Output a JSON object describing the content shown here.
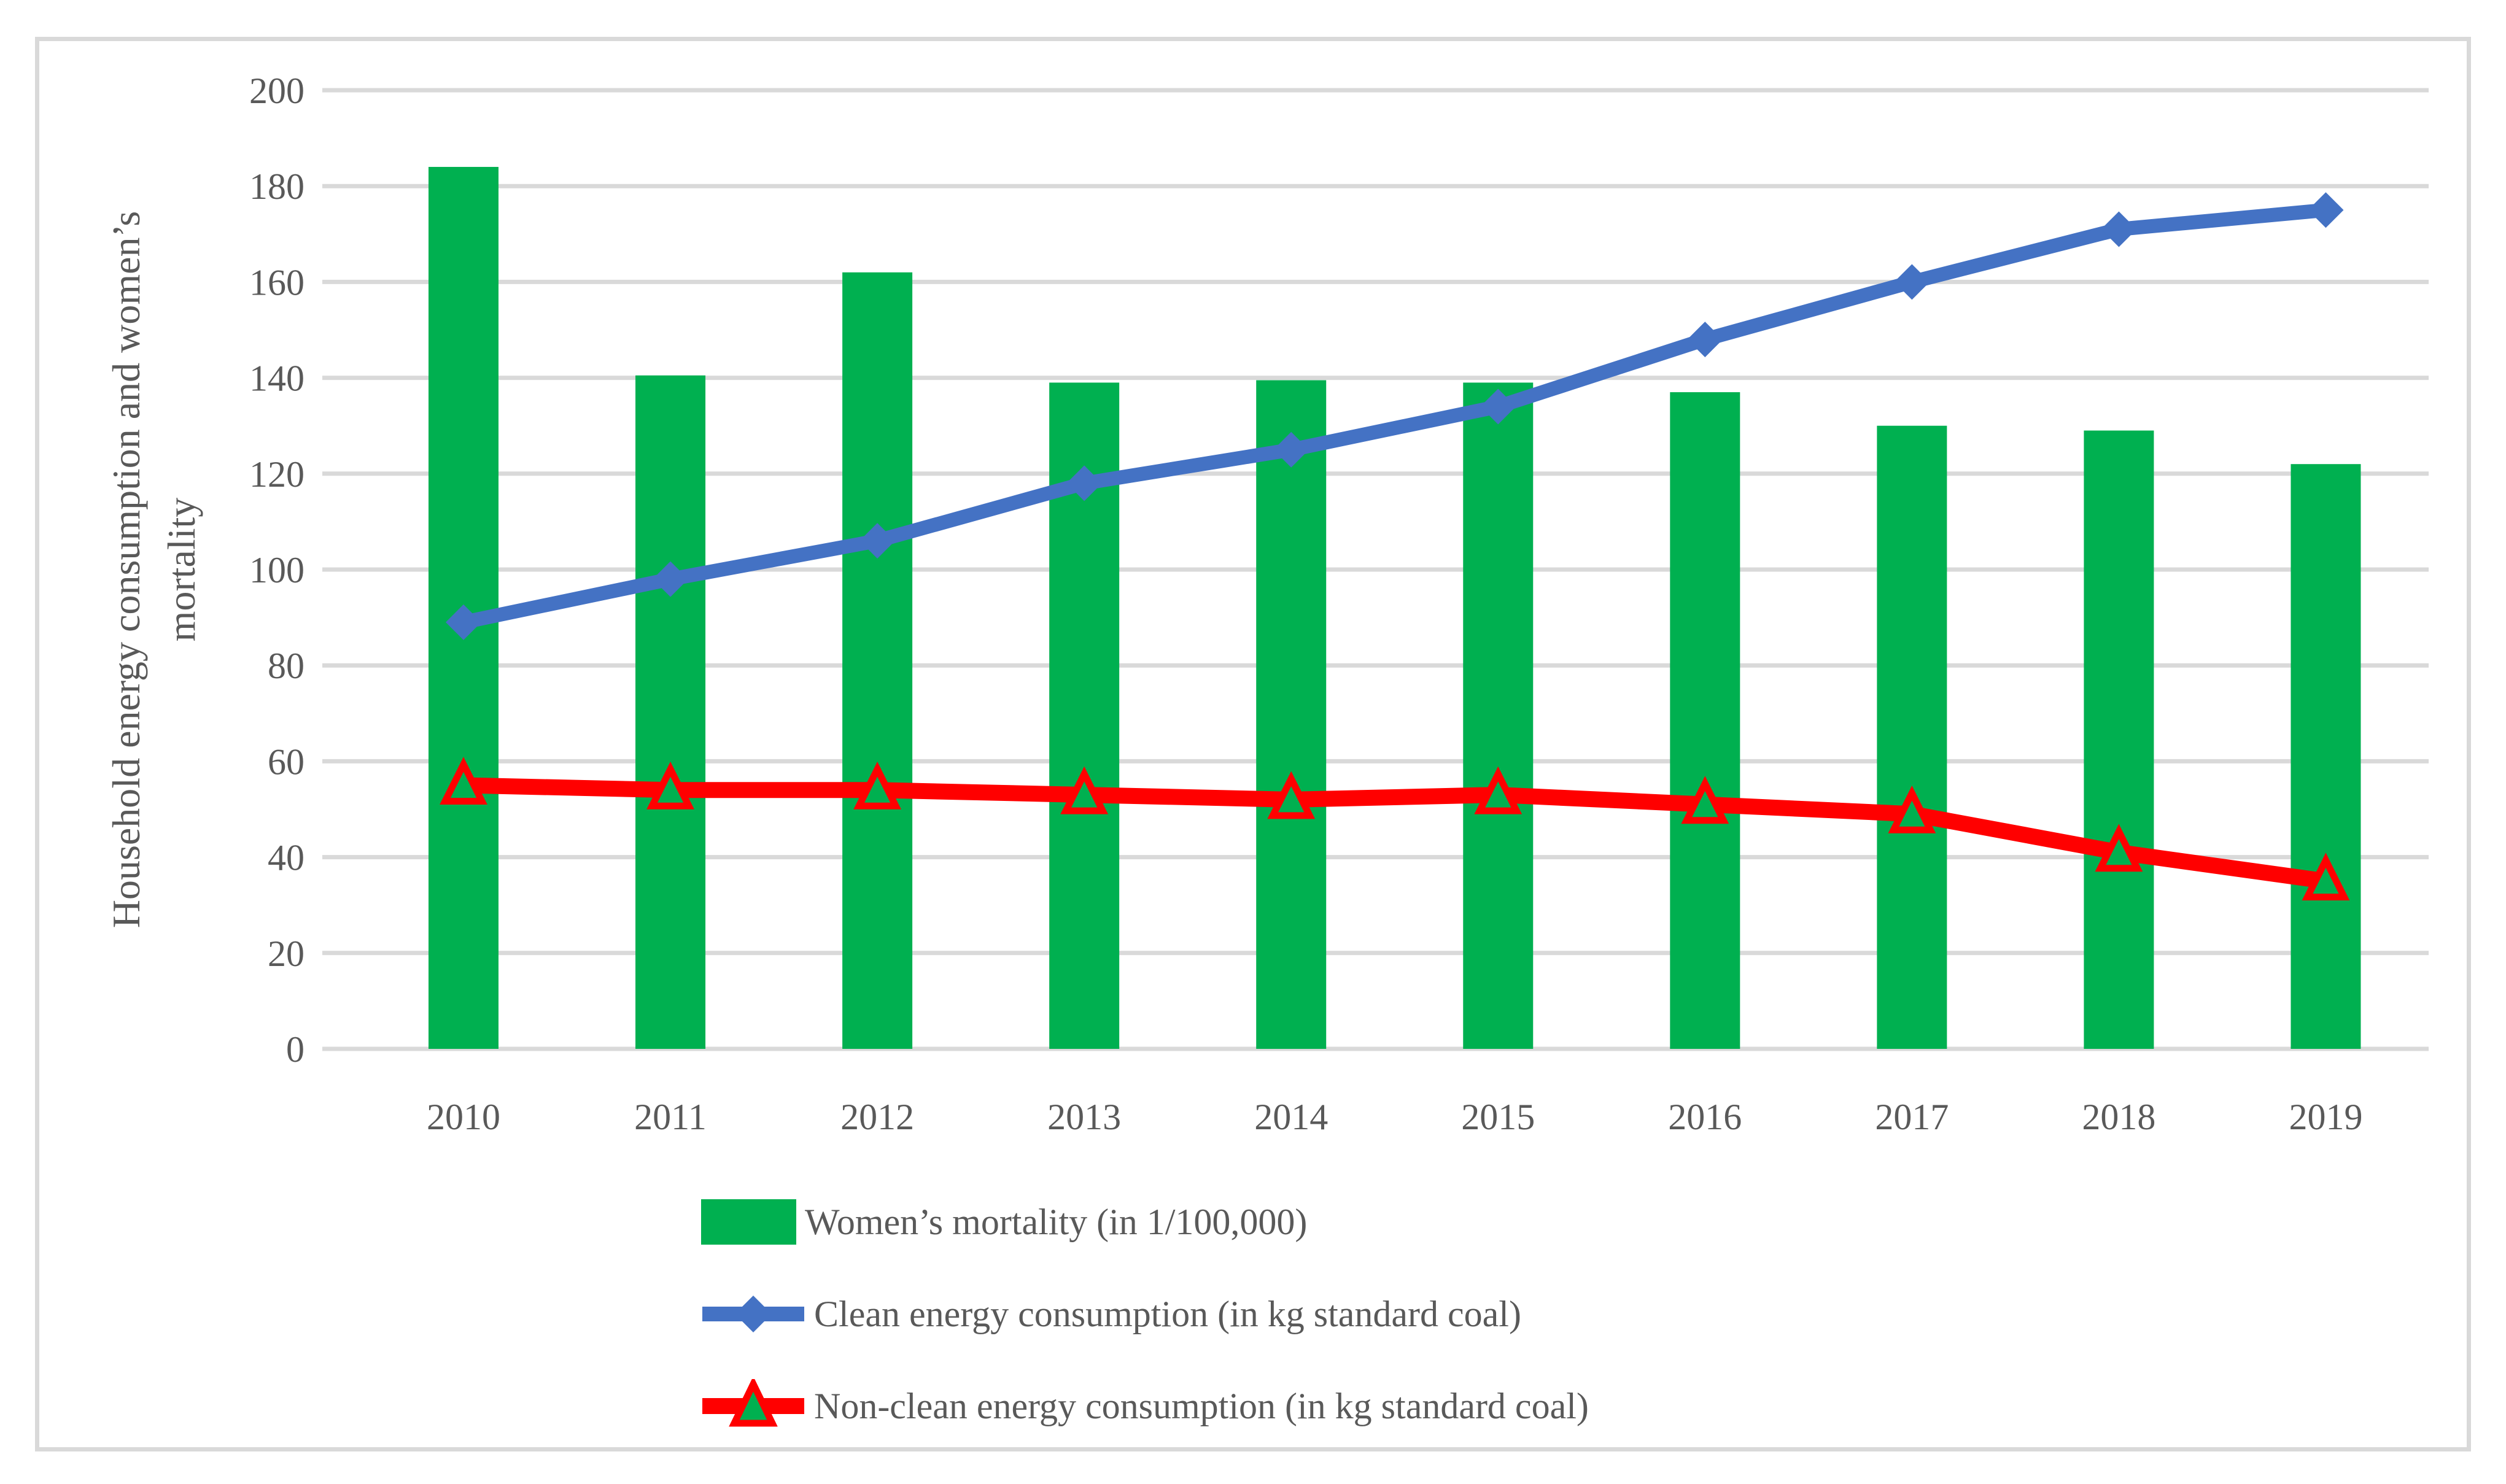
{
  "axis_title": {
    "line1": "Household energy consumption and women’s",
    "line2": "mortality"
  },
  "chart_data": {
    "type": "combo-bar-line",
    "categories": [
      "2010",
      "2011",
      "2012",
      "2013",
      "2014",
      "2015",
      "2016",
      "2017",
      "2018",
      "2019"
    ],
    "series": [
      {
        "name": "Women’s mortality (in 1/100,000)",
        "type": "bar",
        "color": "#00B050",
        "values": [
          184,
          140.5,
          162,
          139,
          139.5,
          139,
          137,
          130,
          129,
          122
        ]
      },
      {
        "name": "Clean energy consumption (in kg standard coal)",
        "type": "line",
        "marker": "diamond",
        "color": "#4472C4",
        "values": [
          89,
          98,
          106,
          118,
          125,
          134,
          148,
          160,
          171,
          175
        ]
      },
      {
        "name": "Non-clean energy consumption (in kg standard coal)",
        "type": "line",
        "marker": "triangle-up",
        "color": "#FF0000",
        "marker_fill": "#00B050",
        "values": [
          55,
          54,
          54,
          53,
          52,
          53,
          51,
          49,
          41,
          35
        ]
      }
    ],
    "ylabel": "Household energy consumption and women's mortality",
    "xlabel": "",
    "ylim": [
      0,
      200
    ],
    "yticks": [
      0,
      20,
      40,
      60,
      80,
      100,
      120,
      140,
      160,
      180,
      200
    ],
    "grid": true,
    "legend_position": "bottom-left",
    "colors": {
      "grid": "#d9d9d9",
      "frame": "#d9d9d9",
      "text": "#595959",
      "background": "#ffffff"
    }
  }
}
